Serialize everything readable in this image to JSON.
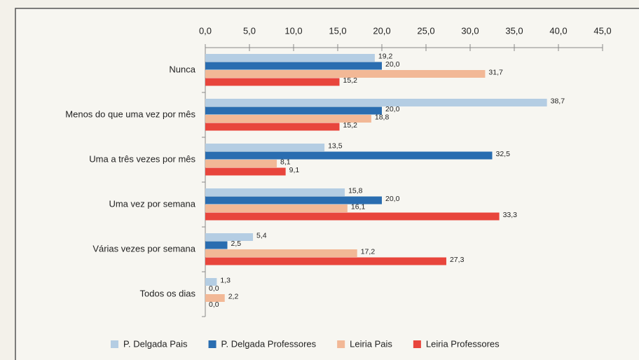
{
  "chart_data": {
    "type": "barh",
    "categories": [
      "Nunca",
      "Menos do que uma vez por mês",
      "Uma a três vezes por mês",
      "Uma vez por semana",
      "Várias vezes por semana",
      "Todos os dias"
    ],
    "series": [
      {
        "name": "P. Delgada Pais",
        "color": "#b4cde3",
        "values": [
          19.2,
          38.7,
          13.5,
          15.8,
          5.4,
          1.3
        ],
        "value_labels": [
          "19,2",
          "38,7",
          "13,5",
          "15,8",
          "5,4",
          "1,3"
        ]
      },
      {
        "name": "P. Delgada Professores",
        "color": "#2a6db0",
        "values": [
          20.0,
          20.0,
          32.5,
          20.0,
          2.5,
          0.0
        ],
        "value_labels": [
          "20,0",
          "20,0",
          "32,5",
          "20,0",
          "2,5",
          "0,0"
        ]
      },
      {
        "name": "Leiria Pais",
        "color": "#f2b896",
        "values": [
          31.7,
          18.8,
          8.1,
          16.1,
          17.2,
          2.2
        ],
        "value_labels": [
          "31,7",
          "18,8",
          "8,1",
          "16,1",
          "17,2",
          "2,2"
        ]
      },
      {
        "name": "Leiria Professores",
        "color": "#e8453c",
        "values": [
          15.2,
          15.2,
          9.1,
          33.3,
          27.3,
          0.0
        ],
        "value_labels": [
          "15,2",
          "15,2",
          "9,1",
          "33,3",
          "27,3",
          "0,0"
        ]
      }
    ],
    "xlim": [
      0,
      45
    ],
    "xticks": [
      {
        "value": 0,
        "label": "0,0"
      },
      {
        "value": 5,
        "label": "5,0"
      },
      {
        "value": 10,
        "label": "10,0"
      },
      {
        "value": 15,
        "label": "15,0"
      },
      {
        "value": 20,
        "label": "20,0"
      },
      {
        "value": 25,
        "label": "25,0"
      },
      {
        "value": 30,
        "label": "30,0"
      },
      {
        "value": 35,
        "label": "35,0"
      },
      {
        "value": 40,
        "label": "40,0"
      },
      {
        "value": 45,
        "label": "45,0"
      }
    ],
    "legend": "bottom"
  }
}
